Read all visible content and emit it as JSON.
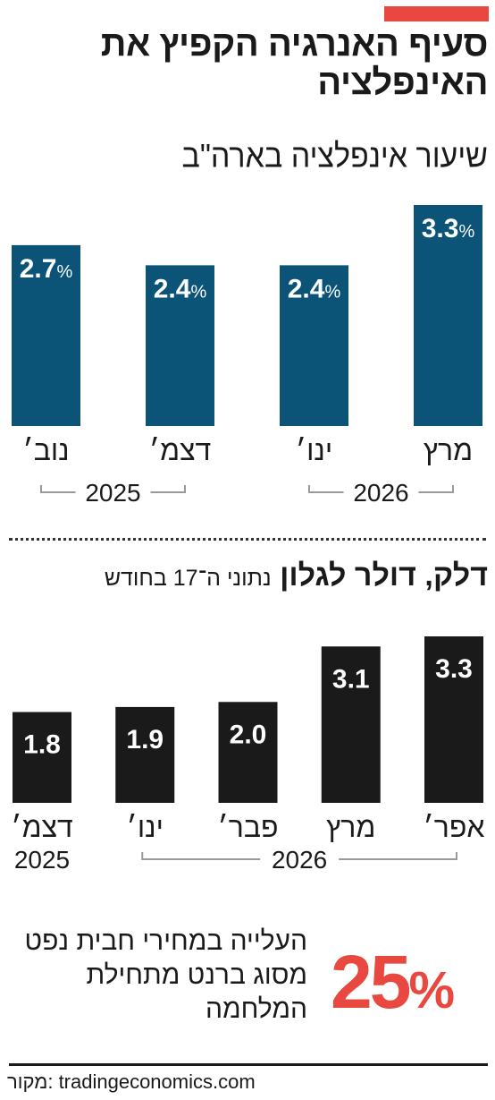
{
  "headline": "סעיף האנרגיה הקפיץ את האינפלציה",
  "section1": {
    "title": "שיעור אינפלציה בארה\"ב"
  },
  "section2": {
    "title": "דלק, דולר לגלון",
    "note": "נתוני ה־17 בחודש"
  },
  "chart_data": [
    {
      "type": "bar",
      "title": "שיעור אינפלציה בארה\"ב",
      "categories": [
        "נוב׳",
        "דצמ׳",
        "ינו׳",
        "מרץ"
      ],
      "values": [
        2.7,
        2.4,
        2.4,
        3.3
      ],
      "value_labels": [
        "2.7",
        "2.4",
        "2.4",
        "3.3"
      ],
      "unit": "%",
      "year_groups": [
        {
          "label": "2025",
          "from": 0,
          "to": 1
        },
        {
          "label": "2026",
          "from": 2,
          "to": 3
        }
      ],
      "bar_color": "#0b5478",
      "ylim": [
        0,
        3.3
      ]
    },
    {
      "type": "bar",
      "title": "דלק, דולר לגלון",
      "categories": [
        "דצמ׳",
        "ינו׳",
        "פבר׳",
        "מרץ",
        "אפר׳"
      ],
      "values": [
        1.8,
        1.9,
        2.0,
        3.1,
        3.3
      ],
      "value_labels": [
        "1.8",
        "1.9",
        "2.0",
        "3.1",
        "3.3"
      ],
      "year_single": {
        "label": "2025",
        "index": 0
      },
      "year_groups": [
        {
          "label": "2026",
          "from": 1,
          "to": 4
        }
      ],
      "bar_color": "#1a1a1a",
      "ylim": [
        0,
        3.3
      ]
    }
  ],
  "highlight": {
    "value": "25",
    "unit": "%",
    "label": "העלייה במחירי חבית נפט מסוג ברנט מתחילת המלחמה",
    "color": "#e8483f"
  },
  "source": "מקור: tradingeconomics.com"
}
